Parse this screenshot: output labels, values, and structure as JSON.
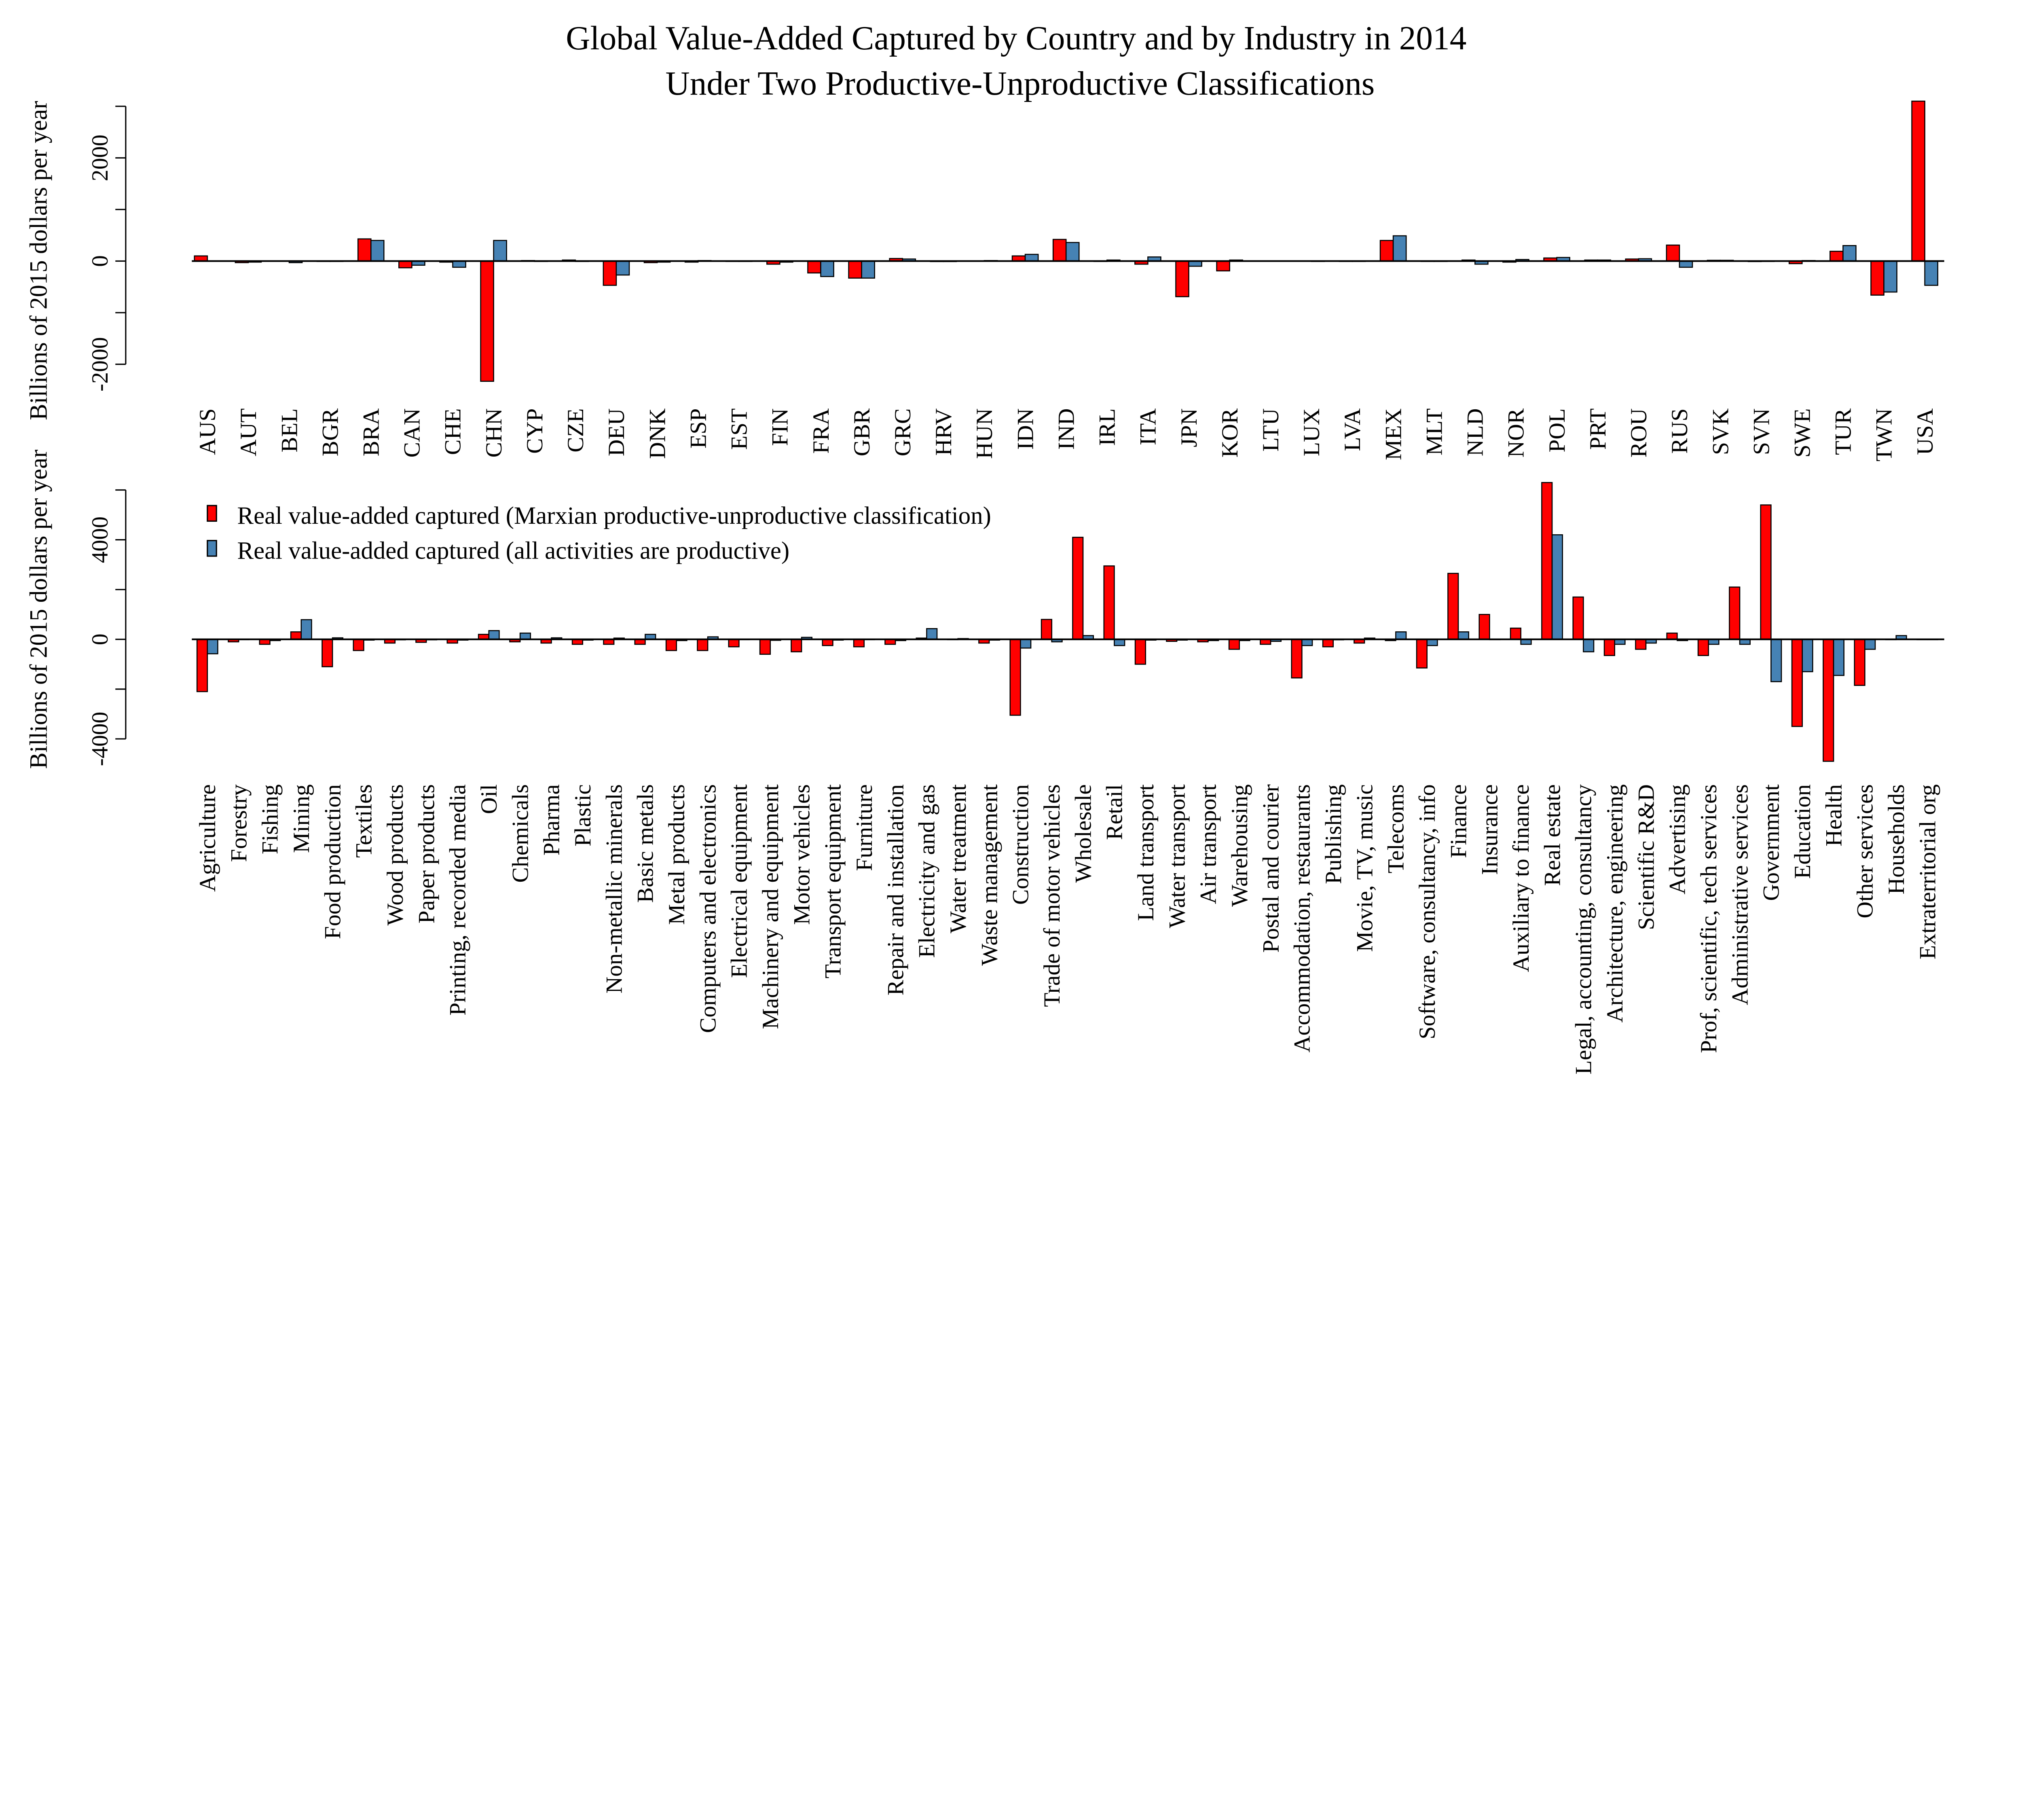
{
  "chart_data": [
    {
      "type": "bar",
      "title": "Global Value-Added Captured by Country and by Industry in 2014",
      "subtitle": "Under Two Productive-Unproductive Classifications",
      "ylabel": "Billions of 2015 dollars per year",
      "ylim": [
        -2000,
        3000
      ],
      "yticks": [
        -2000,
        -1000,
        0,
        1000,
        2000,
        3000
      ],
      "ytick_labels": [
        "-2000",
        "",
        "0",
        "",
        "2000",
        ""
      ],
      "grid": false,
      "categories": [
        "AUS",
        "AUT",
        "BEL",
        "BGR",
        "BRA",
        "CAN",
        "CHE",
        "CHN",
        "CYP",
        "CZE",
        "DEU",
        "DNK",
        "ESP",
        "EST",
        "FIN",
        "FRA",
        "GBR",
        "GRC",
        "HRV",
        "HUN",
        "IDN",
        "IND",
        "IRL",
        "ITA",
        "JPN",
        "KOR",
        "LTU",
        "LUX",
        "LVA",
        "MEX",
        "MLT",
        "NLD",
        "NOR",
        "POL",
        "PRT",
        "ROU",
        "RUS",
        "SVK",
        "SVN",
        "SWE",
        "TUR",
        "TWN",
        "USA"
      ],
      "series": [
        {
          "name": "Real value-added captured (Marxian productive-unproductive classification)",
          "color": "#ff0000",
          "values": [
            100,
            -30,
            5,
            0,
            430,
            -130,
            -20,
            -2330,
            10,
            20,
            -470,
            -30,
            -20,
            0,
            -60,
            -230,
            -330,
            50,
            -10,
            5,
            100,
            420,
            -5,
            -60,
            -690,
            -190,
            5,
            5,
            0,
            400,
            0,
            20,
            -20,
            60,
            20,
            40,
            310,
            15,
            -10,
            -50,
            190,
            -660,
            3100
          ]
        },
        {
          "name": "Real value-added captured (all activities are productive)",
          "color": "#4682b4",
          "values": [
            5,
            -20,
            -30,
            0,
            400,
            -80,
            -120,
            400,
            0,
            0,
            -270,
            -20,
            10,
            0,
            -20,
            -300,
            -330,
            40,
            -10,
            10,
            130,
            360,
            20,
            80,
            -100,
            20,
            5,
            -5,
            0,
            490,
            0,
            -60,
            30,
            70,
            20,
            45,
            -120,
            15,
            0,
            10,
            300,
            -600,
            -470
          ]
        }
      ]
    },
    {
      "type": "bar",
      "ylabel": "Billions of 2015 dollars per year",
      "ylim": [
        -4000,
        6000
      ],
      "yticks": [
        -4000,
        -2000,
        0,
        2000,
        4000,
        6000
      ],
      "ytick_labels": [
        "-4000",
        "",
        "0",
        "",
        "4000",
        ""
      ],
      "grid": false,
      "legend": "top-left",
      "categories": [
        "Agriculture",
        "Forestry",
        "Fishing",
        "Mining",
        "Food production",
        "Textiles",
        "Wood products",
        "Paper products",
        "Printing, recorded media",
        "Oil",
        "Chemicals",
        "Pharma",
        "Plastic",
        "Non-metallic minerals",
        "Basic metals",
        "Metal products",
        "Computers and electronics",
        "Electrical equipment",
        "Machinery and equipment",
        "Motor vehicles",
        "Transport equipment",
        "Furniture",
        "Repair and installation",
        "Electricity and gas",
        "Water treatment",
        "Waste management",
        "Construction",
        "Trade of motor vehicles",
        "Wholesale",
        "Retail",
        "Land transport",
        "Water transport",
        "Air transport",
        "Warehousing",
        "Postal and courier",
        "Accommodation, restaurants",
        "Publishing",
        "Movie, TV, music",
        "Telecoms",
        "Software, consultancy, info",
        "Finance",
        "Insurance",
        "Auxiliary to finance",
        "Real estate",
        "Legal, accounting, consultancy",
        "Architecture, engineering",
        "Scientific R&D",
        "Advertising",
        "Prof, scientific, tech services",
        "Administrative services",
        "Government",
        "Education",
        "Health",
        "Other services",
        "Households",
        "Extraterritorial org"
      ],
      "series": [
        {
          "name": "Real value-added captured (Marxian productive-unproductive classification)",
          "color": "#ff0000",
          "values": [
            -2100,
            -100,
            -200,
            300,
            -1100,
            -450,
            -150,
            -120,
            -150,
            200,
            -100,
            -150,
            -200,
            -200,
            -200,
            -450,
            -450,
            -300,
            -600,
            -500,
            -250,
            -300,
            -200,
            50,
            0,
            -150,
            -3050,
            800,
            4100,
            2950,
            -1000,
            -80,
            -100,
            -400,
            -200,
            -1550,
            -300,
            -150,
            -50,
            -1150,
            2650,
            1000,
            450,
            6300,
            1700,
            -650,
            -400,
            250,
            -650,
            2100,
            5400,
            -3500,
            -4900,
            -1850,
            0,
            0
          ]
        },
        {
          "name": "Real value-added captured (all activities are productive)",
          "color": "#4682b4",
          "values": [
            -580,
            0,
            -50,
            790,
            60,
            -30,
            -20,
            -20,
            -30,
            350,
            250,
            60,
            -30,
            50,
            200,
            -50,
            100,
            0,
            -40,
            80,
            -30,
            -10,
            -50,
            430,
            30,
            -30,
            -350,
            -100,
            150,
            -250,
            -30,
            -30,
            -50,
            -50,
            -80,
            -250,
            -20,
            50,
            300,
            -250,
            300,
            0,
            -200,
            4200,
            -500,
            -200,
            -150,
            -50,
            -200,
            -200,
            -1700,
            -1300,
            -1450,
            -400,
            150,
            0
          ]
        }
      ]
    }
  ]
}
